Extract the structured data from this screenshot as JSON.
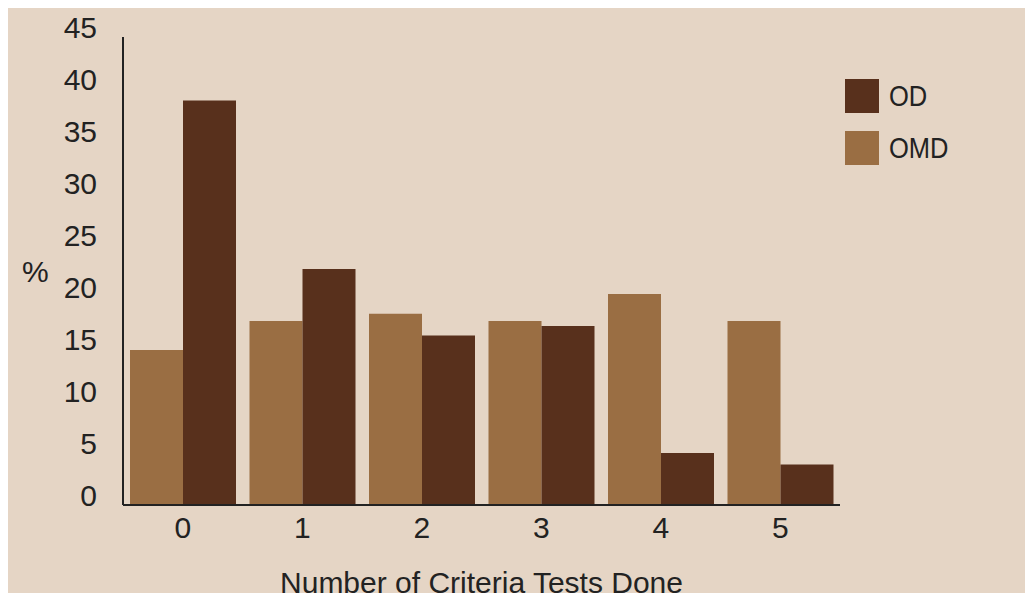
{
  "chart_data": {
    "type": "bar",
    "x_label": "Number of Criteria Tests Done",
    "y_label": "%",
    "categories": [
      "0",
      "1",
      "2",
      "3",
      "4",
      "5"
    ],
    "series": [
      {
        "name": "OMD",
        "color": "#9a6e43",
        "values": [
          14.9,
          17.7,
          18.4,
          17.7,
          20.3,
          17.7
        ]
      },
      {
        "name": "OD",
        "color": "#58301c",
        "values": [
          38.9,
          22.7,
          16.3,
          17.2,
          5.0,
          3.9
        ]
      }
    ],
    "ylim": [
      0,
      45
    ],
    "yticks": [
      0,
      5,
      10,
      15,
      20,
      25,
      30,
      35,
      40,
      45
    ],
    "grid": false,
    "legend": "upper right"
  }
}
